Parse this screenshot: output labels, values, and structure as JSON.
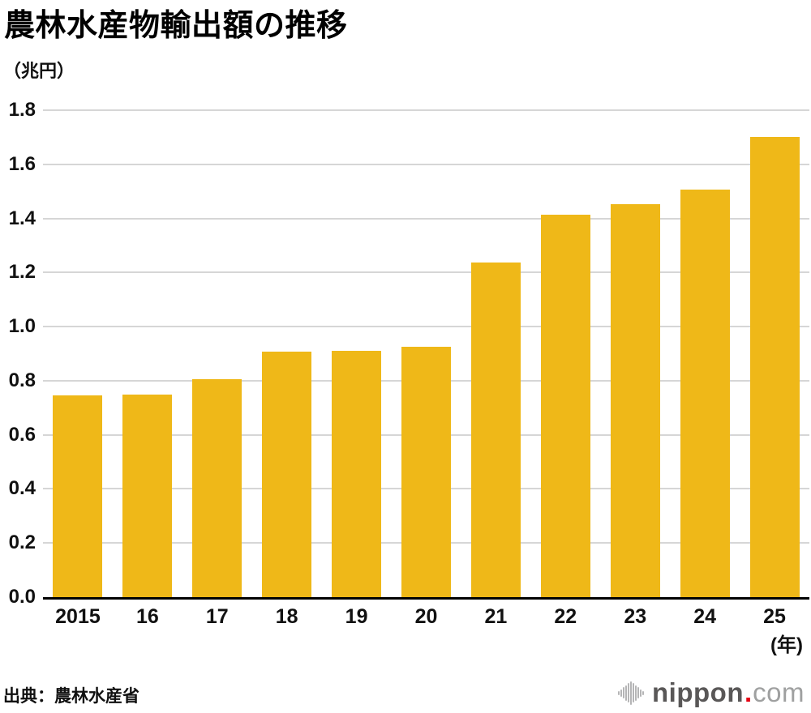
{
  "header": {
    "title": "農林水産物輸出額の推移",
    "unit_label": "（兆円）"
  },
  "chart_data": {
    "type": "bar",
    "title": "農林水産物輸出額の推移",
    "ylabel": "（兆円）",
    "xlabel": "(年)",
    "categories": [
      "2015",
      "16",
      "17",
      "18",
      "19",
      "20",
      "21",
      "22",
      "23",
      "24",
      "25"
    ],
    "values": [
      0.745,
      0.75,
      0.807,
      0.907,
      0.912,
      0.925,
      1.238,
      1.415,
      1.454,
      1.507,
      1.702
    ],
    "ylim": [
      0,
      1.8
    ],
    "ytick_labels": [
      "0.0",
      "0.2",
      "0.4",
      "0.6",
      "0.8",
      "1.0",
      "1.2",
      "1.4",
      "1.6",
      "1.8"
    ],
    "grid": "horizontal",
    "legend_position": "none",
    "bar_color": "#efb818",
    "gridline_color": "#d6d6d6",
    "axis_line_color": "#000000",
    "tick_label_color": "#111111"
  },
  "footer": {
    "source": "出典：農林水産省",
    "logo": {
      "word": "nippon",
      "dot": ".",
      "tld": "com",
      "word_color": "#595757",
      "dot_color": "#e60012",
      "tld_color": "#9fa0a0",
      "icon_color": "#b5b5b6",
      "icon_bar_heights": [
        5,
        9,
        14,
        19,
        24,
        29,
        24,
        19,
        14,
        9,
        5
      ]
    }
  }
}
